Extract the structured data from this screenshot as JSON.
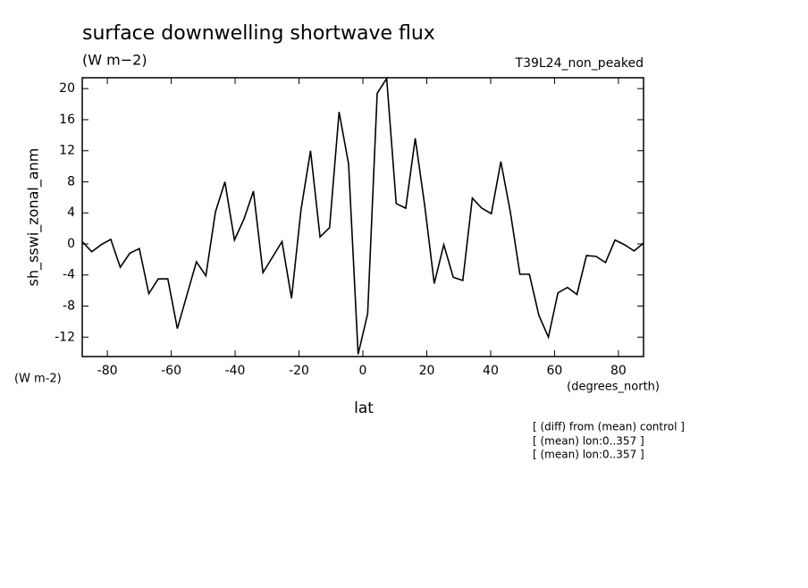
{
  "chart_data": {
    "type": "line",
    "title": "surface downwelling shortwave flux",
    "units": "(W m−2)",
    "run_label": "T39L24_non_peaked",
    "y_label": "sh_sswi_zonal_anm",
    "y_units": "(W m-2)",
    "x_label": "lat",
    "x_units": "(degrees_north)",
    "notes": [
      "[ (diff) from (mean) control ]",
      "[ (mean) lon:0..357 ]",
      "[ (mean) lon:0..357 ]"
    ],
    "x": [
      -87.86,
      -84.88,
      -81.9,
      -78.93,
      -75.95,
      -72.97,
      -69.99,
      -67.01,
      -64.04,
      -61.06,
      -58.08,
      -55.1,
      -52.12,
      -49.15,
      -46.17,
      -43.19,
      -40.21,
      -37.23,
      -34.26,
      -31.28,
      -28.3,
      -25.32,
      -22.34,
      -19.37,
      -16.39,
      -13.41,
      -10.43,
      -7.45,
      -4.48,
      -1.49,
      1.49,
      4.48,
      7.45,
      10.43,
      13.41,
      16.39,
      19.37,
      22.34,
      25.32,
      28.3,
      31.28,
      34.26,
      37.23,
      40.21,
      43.19,
      46.17,
      49.15,
      52.12,
      55.1,
      58.08,
      61.06,
      64.04,
      67.01,
      69.99,
      72.97,
      75.95,
      78.93,
      81.9,
      84.88,
      87.86
    ],
    "series": [
      {
        "color": "#000000",
        "values": [
          0.3,
          -1,
          -0.1,
          0.6,
          -3,
          -1.2,
          -0.6,
          -6.4,
          -4.5,
          -4.5,
          -10.9,
          -6.6,
          -2.3,
          -4.1,
          4.1,
          8,
          0.5,
          3.2,
          6.8,
          -3.7,
          -1.7,
          0.3,
          -7,
          4.4,
          12,
          0.9,
          2.1,
          17,
          10.3,
          -14.2,
          -9,
          19.4,
          21.3,
          5.2,
          4.6,
          13.6,
          4.9,
          -5.1,
          -0.1,
          -4.3,
          -4.7,
          5.9,
          4.6,
          3.9,
          10.6,
          4.1,
          -3.9,
          -3.9,
          -9.2,
          -12,
          -6.3,
          -5.6,
          -6.5,
          -1.5,
          -1.6,
          -2.4,
          0.5,
          -0.1,
          -0.9,
          0.1
        ]
      }
    ],
    "xlim": [
      -87.86,
      87.86
    ],
    "ylim": [
      -14.5,
      21.4
    ],
    "xticks": [
      -80,
      -60,
      -40,
      -20,
      0,
      20,
      40,
      60,
      80
    ],
    "yticks": [
      -12,
      -8,
      -4,
      0,
      4,
      8,
      12,
      16,
      20
    ]
  }
}
